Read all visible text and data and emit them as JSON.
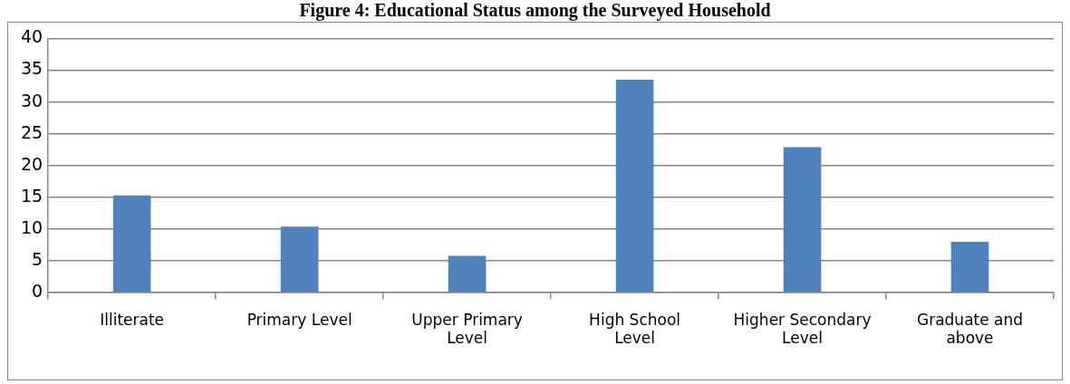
{
  "chart_data": {
    "type": "bar",
    "title": "Figure 4: Educational Status among the Surveyed Household",
    "categories": [
      "Illiterate",
      "Primary Level",
      "Upper Primary Level",
      "High School Level",
      "Higher Secondary Level",
      "Graduate and above"
    ],
    "values": [
      15.3,
      10.4,
      5.8,
      33.5,
      22.9,
      8.0
    ],
    "color": "#4f81bd",
    "ylim": [
      0,
      40
    ],
    "yticks": [
      0,
      5,
      10,
      15,
      20,
      25,
      30,
      35,
      40
    ],
    "grid": "y",
    "legend": false
  }
}
